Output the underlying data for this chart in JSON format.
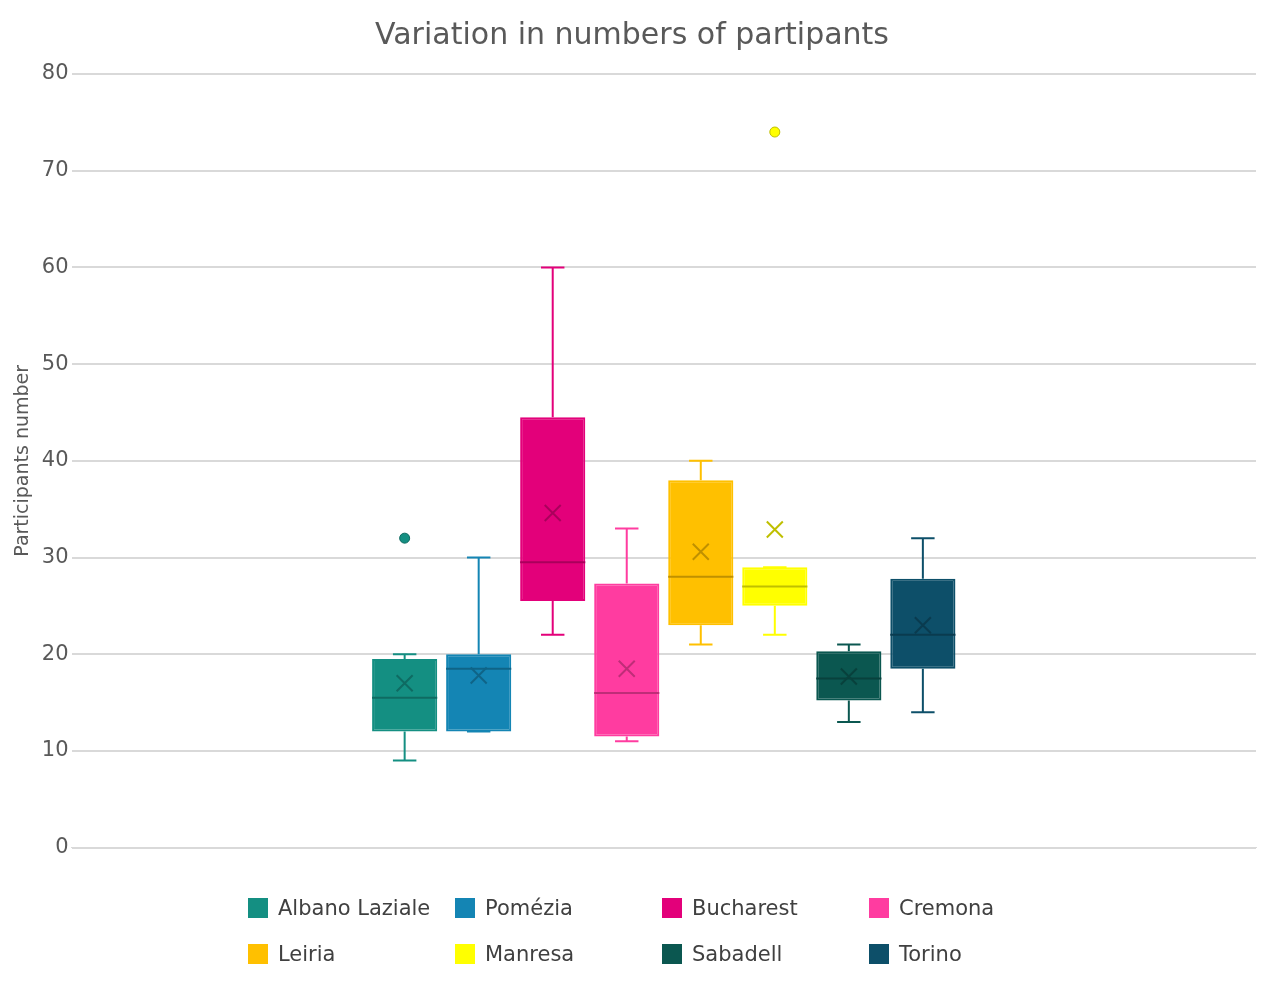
{
  "chart_data": {
    "type": "box",
    "title": "Variation in numbers of partipants",
    "ylabel": "Participants number",
    "categories": [
      null
    ],
    "ylim": [
      0,
      80
    ],
    "yticks": [
      0,
      10,
      20,
      30,
      40,
      50,
      60,
      70,
      80
    ],
    "grid": "y",
    "legend": "bottom",
    "marker": "circle",
    "series": [
      {
        "name": "Albano Laziale",
        "color": "#148f82",
        "boxes": [
          {
            "low": 9,
            "q1": 12,
            "median": 15.5,
            "q3": 19.5,
            "high": 20,
            "mean": 17,
            "outliers": [
              32
            ]
          }
        ]
      },
      {
        "name": "Pomézia",
        "color": "#1485b4",
        "boxes": [
          {
            "low": 12,
            "q1": 12,
            "median": 18.5,
            "q3": 20,
            "high": 30,
            "mean": 17.8
          }
        ]
      },
      {
        "name": "Bucharest",
        "color": "#e3007a",
        "boxes": [
          {
            "low": 22,
            "q1": 25.5,
            "median": 29.5,
            "q3": 44.5,
            "high": 60,
            "mean": 34.6
          }
        ]
      },
      {
        "name": "Cremona",
        "color": "#ff3ca0",
        "boxes": [
          {
            "low": 11,
            "q1": 11.5,
            "median": 16,
            "q3": 27.3,
            "high": 33,
            "mean": 18.5
          }
        ]
      },
      {
        "name": "Leiria",
        "color": "#ffc000",
        "boxes": [
          {
            "low": 21,
            "q1": 23,
            "median": 28,
            "q3": 38,
            "high": 40,
            "mean": 30.6
          }
        ]
      },
      {
        "name": "Manresa",
        "color": "#ffff00",
        "boxes": [
          {
            "low": 22,
            "q1": 25,
            "median": 27,
            "q3": 29,
            "high": 29,
            "mean": 32.9,
            "outliers": [
              74
            ]
          }
        ]
      },
      {
        "name": "Sabadell",
        "color": "#0b5750",
        "boxes": [
          {
            "low": 13,
            "q1": 15.2,
            "median": 17.5,
            "q3": 20.3,
            "high": 21,
            "mean": 17.7
          }
        ]
      },
      {
        "name": "Torino",
        "color": "#0d4f69",
        "boxes": [
          {
            "low": 14,
            "q1": 18.5,
            "median": 22,
            "q3": 27.8,
            "high": 32,
            "mean": 23
          }
        ]
      }
    ]
  }
}
